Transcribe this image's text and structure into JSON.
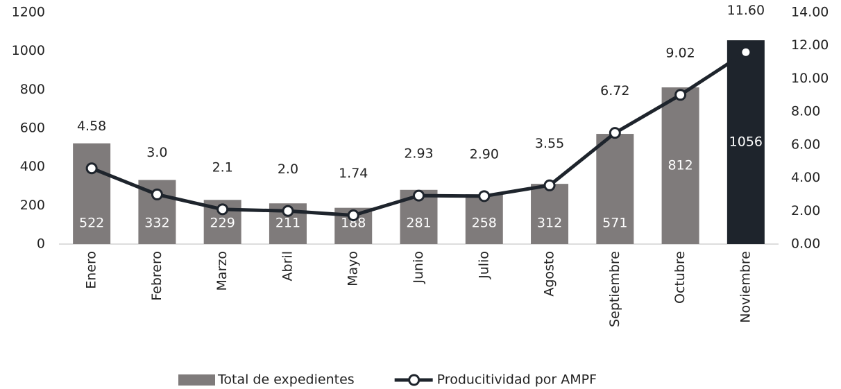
{
  "chart_data": {
    "type": "bar-line",
    "categories": [
      "Enero",
      "Febrero",
      "Marzo",
      "Abril",
      "Mayo",
      "Junio",
      "Julio",
      "Agosto",
      "Septiembre",
      "Octubre",
      "Noviembre"
    ],
    "series": [
      {
        "name": "Total de expedientes",
        "type": "bar",
        "color": "#7f7b7b",
        "colors": [
          "#7f7b7b",
          "#7f7b7b",
          "#7f7b7b",
          "#7f7b7b",
          "#7f7b7b",
          "#7f7b7b",
          "#7f7b7b",
          "#7f7b7b",
          "#7f7b7b",
          "#7f7b7b",
          "#1e242c"
        ],
        "values": [
          522,
          332,
          229,
          211,
          188,
          281,
          258,
          312,
          571,
          812,
          1056
        ]
      },
      {
        "name": "Producitividad por AMPF",
        "type": "line",
        "axis": "y2",
        "color": "#1e242c",
        "values": [
          4.58,
          3.0,
          2.1,
          2.0,
          1.74,
          2.93,
          2.9,
          3.55,
          6.72,
          9.02,
          11.6
        ],
        "value_labels": [
          "4.58",
          "3.0",
          "2.1",
          "2.0",
          "1.74",
          "2.93",
          "2.90",
          "3.55",
          "6.72",
          "9.02",
          "11.60"
        ]
      }
    ],
    "ylim": [
      0,
      1200
    ],
    "yticks": [
      0,
      200,
      400,
      600,
      800,
      1000,
      1200
    ],
    "y2lim": [
      0,
      14
    ],
    "y2ticks": [
      {
        "value": 0,
        "label": "0.00"
      },
      {
        "value": 2,
        "label": "2.00"
      },
      {
        "value": 4,
        "label": "4.00"
      },
      {
        "value": 6,
        "label": "6.00"
      },
      {
        "value": 8,
        "label": "8.00"
      },
      {
        "value": 10,
        "label": "10.00"
      },
      {
        "value": 12,
        "label": "12.00"
      },
      {
        "value": 14,
        "label": "14.00"
      }
    ],
    "legend": "bottom"
  }
}
